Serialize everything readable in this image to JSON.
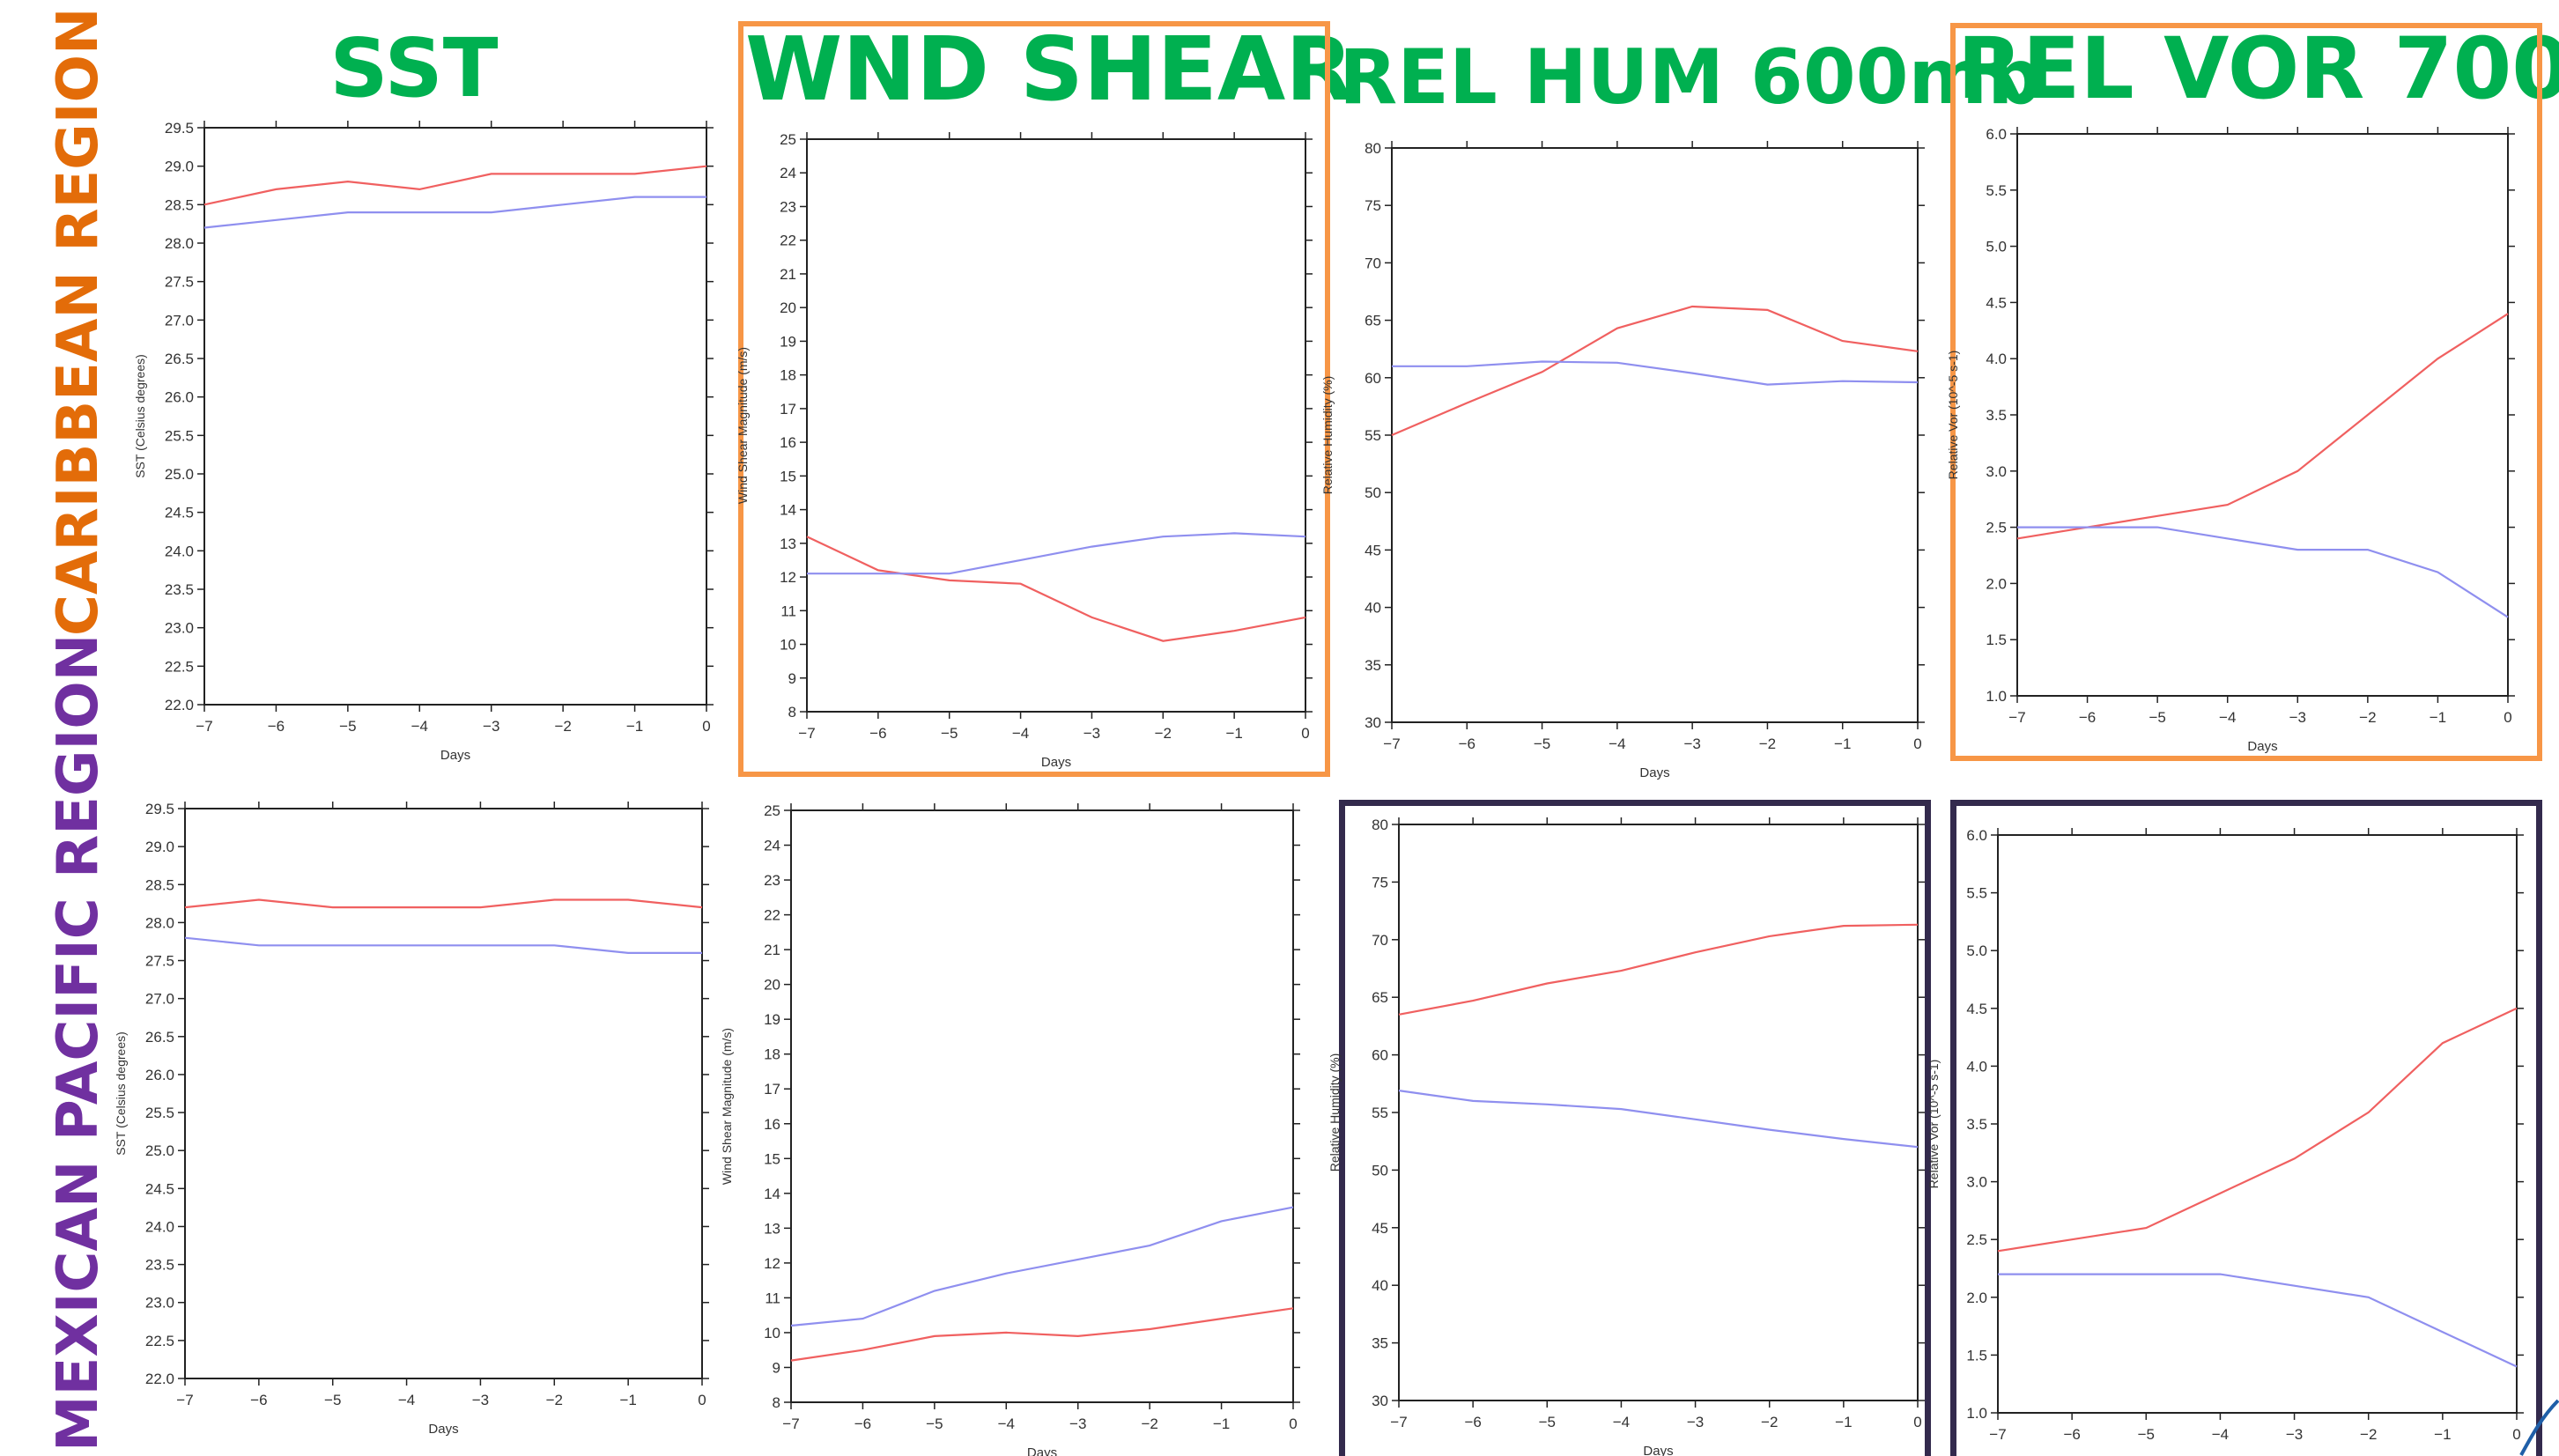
{
  "columns": [
    {
      "id": "sst",
      "title": "SST"
    },
    {
      "id": "shear",
      "title": "WND SHEAR"
    },
    {
      "id": "rh",
      "title": "REL HUM 600mb"
    },
    {
      "id": "vor",
      "title": "REL VOR 700"
    }
  ],
  "rows": [
    {
      "id": "caribbean",
      "label_part1": "CARIBBEAN",
      "label_part2": "REGION",
      "color1": "#e36c09",
      "color2": "#e36c09"
    },
    {
      "id": "mexican",
      "label_part1": "MEXICAN",
      "label_part2": "PACIFIC REGION",
      "color1": "#7030a0",
      "color2": "#7030a0"
    }
  ],
  "colors": {
    "title_green": "#00b050",
    "highlight_orange": "#f79646",
    "highlight_navy": "#332a4d",
    "series_red": "#f06060",
    "series_blue": "#8f8fef"
  },
  "chart_data": [
    {
      "id": "carib-sst",
      "type": "line",
      "title": "",
      "xlabel": "Days",
      "ylabel": "SST (Celsius degrees)",
      "x": [
        -7,
        -6,
        -5,
        -4,
        -3,
        -2,
        -1,
        0
      ],
      "xlim": [
        -7,
        0
      ],
      "ylim": [
        22.0,
        29.5
      ],
      "ystep": 0.5,
      "ydec": 1,
      "series": [
        {
          "color": "#f06060",
          "values": [
            28.5,
            28.7,
            28.8,
            28.7,
            28.9,
            28.9,
            28.9,
            29.0
          ]
        },
        {
          "color": "#8f8fef",
          "values": [
            28.2,
            28.3,
            28.4,
            28.4,
            28.4,
            28.5,
            28.6,
            28.6
          ]
        }
      ]
    },
    {
      "id": "carib-shear",
      "type": "line",
      "title": "",
      "xlabel": "Days",
      "ylabel": "Wind Shear Magnitude (m/s)",
      "x": [
        -7,
        -6,
        -5,
        -4,
        -3,
        -2,
        -1,
        0
      ],
      "xlim": [
        -7,
        0
      ],
      "ylim": [
        8,
        25
      ],
      "ystep": 1,
      "ydec": 0,
      "series": [
        {
          "color": "#f06060",
          "values": [
            13.2,
            12.2,
            11.9,
            11.8,
            10.8,
            10.1,
            10.4,
            10.8
          ]
        },
        {
          "color": "#8f8fef",
          "values": [
            12.1,
            12.1,
            12.1,
            12.5,
            12.9,
            13.2,
            13.3,
            13.2
          ]
        }
      ]
    },
    {
      "id": "carib-rh",
      "type": "line",
      "title": "",
      "xlabel": "Days",
      "ylabel": "Relative Humidity (%)",
      "x": [
        -7,
        -6,
        -5,
        -4,
        -3,
        -2,
        -1,
        0
      ],
      "xlim": [
        -7,
        0
      ],
      "ylim": [
        30,
        80
      ],
      "ystep": 5,
      "ydec": 0,
      "series": [
        {
          "color": "#f06060",
          "values": [
            55.0,
            57.8,
            60.5,
            64.3,
            66.2,
            65.9,
            63.2,
            62.3
          ]
        },
        {
          "color": "#8f8fef",
          "values": [
            61.0,
            61.0,
            61.4,
            61.3,
            60.4,
            59.4,
            59.7,
            59.6
          ]
        }
      ]
    },
    {
      "id": "carib-vor",
      "type": "line",
      "title": "",
      "xlabel": "Days",
      "ylabel": "Relative Vor (10^-5 s-1)",
      "x": [
        -7,
        -6,
        -5,
        -4,
        -3,
        -2,
        -1,
        0
      ],
      "xlim": [
        -7,
        0
      ],
      "ylim": [
        1.0,
        6.0
      ],
      "ystep": 0.5,
      "ydec": 1,
      "series": [
        {
          "color": "#f06060",
          "values": [
            2.4,
            2.5,
            2.6,
            2.7,
            3.0,
            3.5,
            4.0,
            4.4
          ]
        },
        {
          "color": "#8f8fef",
          "values": [
            2.5,
            2.5,
            2.5,
            2.4,
            2.3,
            2.3,
            2.1,
            1.7
          ]
        }
      ]
    },
    {
      "id": "mex-sst",
      "type": "line",
      "title": "",
      "xlabel": "Days",
      "ylabel": "SST (Celsius degrees)",
      "x": [
        -7,
        -6,
        -5,
        -4,
        -3,
        -2,
        -1,
        0
      ],
      "xlim": [
        -7,
        0
      ],
      "ylim": [
        22.0,
        29.5
      ],
      "ystep": 0.5,
      "ydec": 1,
      "series": [
        {
          "color": "#f06060",
          "values": [
            28.2,
            28.3,
            28.2,
            28.2,
            28.2,
            28.3,
            28.3,
            28.2
          ]
        },
        {
          "color": "#8f8fef",
          "values": [
            27.8,
            27.7,
            27.7,
            27.7,
            27.7,
            27.7,
            27.6,
            27.6
          ]
        }
      ]
    },
    {
      "id": "mex-shear",
      "type": "line",
      "title": "",
      "xlabel": "Days",
      "ylabel": "Wind Shear Magnitude (m/s)",
      "x": [
        -7,
        -6,
        -5,
        -4,
        -3,
        -2,
        -1,
        0
      ],
      "xlim": [
        -7,
        0
      ],
      "ylim": [
        8,
        25
      ],
      "ystep": 1,
      "ydec": 0,
      "series": [
        {
          "color": "#f06060",
          "values": [
            9.2,
            9.5,
            9.9,
            10.0,
            9.9,
            10.1,
            10.4,
            10.7
          ]
        },
        {
          "color": "#8f8fef",
          "values": [
            10.2,
            10.4,
            11.2,
            11.7,
            12.1,
            12.5,
            13.2,
            13.6
          ]
        }
      ]
    },
    {
      "id": "mex-rh",
      "type": "line",
      "title": "",
      "xlabel": "Days",
      "ylabel": "Relative Humidity (%)",
      "x": [
        -7,
        -6,
        -5,
        -4,
        -3,
        -2,
        -1,
        0
      ],
      "xlim": [
        -7,
        0
      ],
      "ylim": [
        30,
        80
      ],
      "ystep": 5,
      "ydec": 0,
      "series": [
        {
          "color": "#f06060",
          "values": [
            63.5,
            64.7,
            66.2,
            67.3,
            68.9,
            70.3,
            71.2,
            71.3
          ]
        },
        {
          "color": "#8f8fef",
          "values": [
            56.9,
            56.0,
            55.7,
            55.3,
            54.4,
            53.5,
            52.7,
            52.0
          ]
        }
      ]
    },
    {
      "id": "mex-vor",
      "type": "line",
      "title": "",
      "xlabel": "Days",
      "ylabel": "Relative Vor (10^-5 s-1)",
      "x": [
        -7,
        -6,
        -5,
        -4,
        -3,
        -2,
        -1,
        0
      ],
      "xlim": [
        -7,
        0
      ],
      "ylim": [
        1.0,
        6.0
      ],
      "ystep": 0.5,
      "ydec": 1,
      "series": [
        {
          "color": "#f06060",
          "values": [
            2.4,
            2.5,
            2.6,
            2.9,
            3.2,
            3.6,
            4.2,
            4.5
          ]
        },
        {
          "color": "#8f8fef",
          "values": [
            2.2,
            2.2,
            2.2,
            2.2,
            2.1,
            2.0,
            1.7,
            1.4
          ]
        }
      ]
    }
  ]
}
